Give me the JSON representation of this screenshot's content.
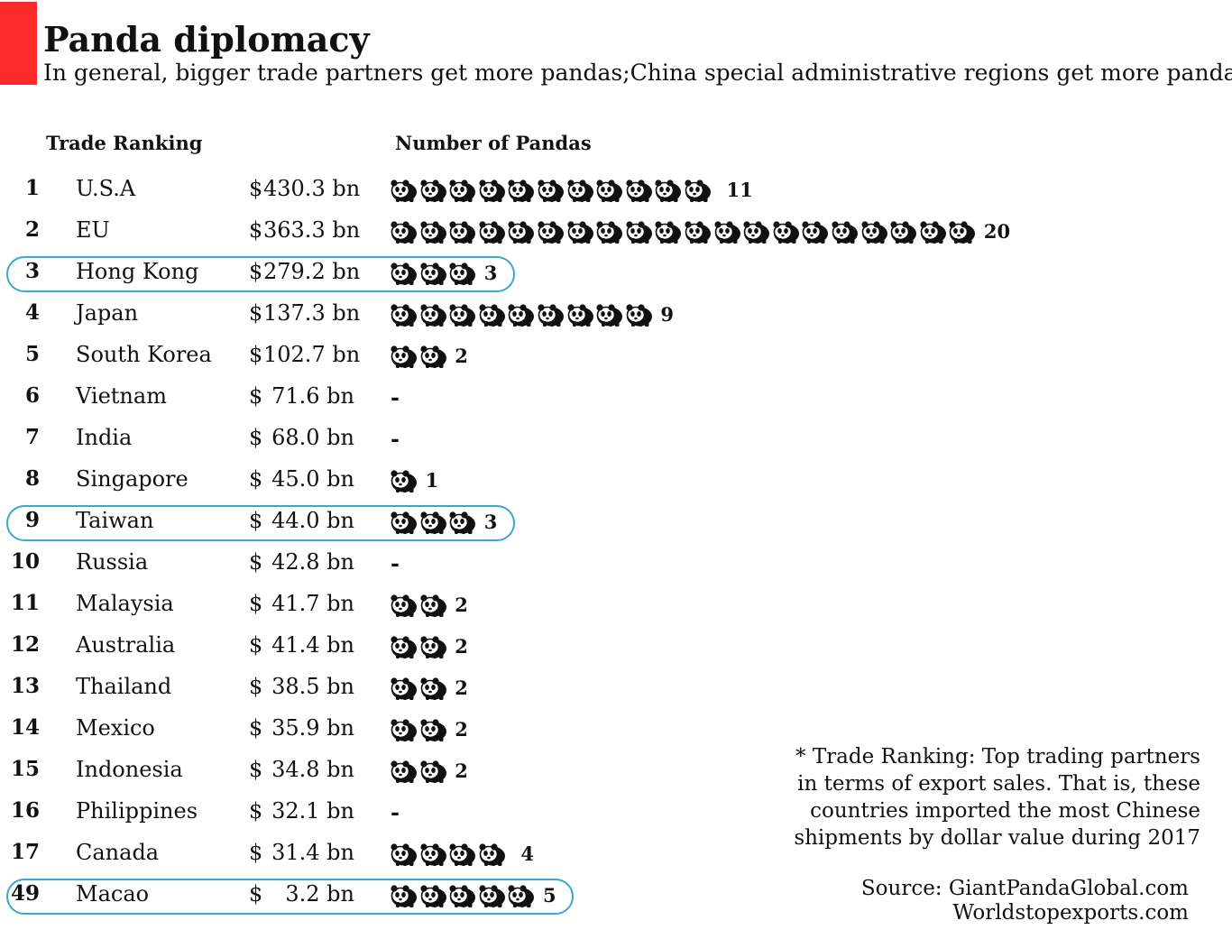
{
  "header": {
    "title": "Panda diplomacy",
    "subtitle": "In general, bigger trade partners get more pandas;China special administrative regions get more pandas"
  },
  "columns": {
    "ranking": "Trade Ranking",
    "pandas": "Number of Pandas"
  },
  "colors": {
    "accent": "#ff2a2a",
    "highlight": "#3aa6d4",
    "text": "#111111"
  },
  "icon": "panda-icon",
  "chart_data": {
    "type": "table",
    "rows": [
      {
        "rank": "1",
        "country": "U.S.A",
        "currency": "$",
        "amount": "430.3 bn",
        "pandas": 11,
        "label": "11",
        "highlight": false
      },
      {
        "rank": "2",
        "country": "EU",
        "currency": "$",
        "amount": "363.3 bn",
        "pandas": 20,
        "label": "20",
        "highlight": false
      },
      {
        "rank": "3",
        "country": "Hong Kong",
        "currency": "$",
        "amount": "279.2 bn",
        "pandas": 3,
        "label": "3",
        "highlight": true
      },
      {
        "rank": "4",
        "country": "Japan",
        "currency": "$",
        "amount": "137.3 bn",
        "pandas": 9,
        "label": "9",
        "highlight": false
      },
      {
        "rank": "5",
        "country": "South Korea",
        "currency": "$",
        "amount": "102.7 bn",
        "pandas": 2,
        "label": "2",
        "highlight": false
      },
      {
        "rank": "6",
        "country": "Vietnam",
        "currency": "$",
        "amount": "71.6 bn",
        "pandas": 0,
        "label": "-",
        "highlight": false
      },
      {
        "rank": "7",
        "country": "India",
        "currency": "$",
        "amount": "68.0 bn",
        "pandas": 0,
        "label": "-",
        "highlight": false
      },
      {
        "rank": "8",
        "country": "Singapore",
        "currency": "$",
        "amount": "45.0 bn",
        "pandas": 1,
        "label": "1",
        "highlight": false
      },
      {
        "rank": "9",
        "country": "Taiwan",
        "currency": "$",
        "amount": "44.0 bn",
        "pandas": 3,
        "label": "3",
        "highlight": true
      },
      {
        "rank": "10",
        "country": "Russia",
        "currency": "$",
        "amount": "42.8 bn",
        "pandas": 0,
        "label": "-",
        "highlight": false
      },
      {
        "rank": "11",
        "country": "Malaysia",
        "currency": "$",
        "amount": "41.7 bn",
        "pandas": 2,
        "label": "2",
        "highlight": false
      },
      {
        "rank": "12",
        "country": "Australia",
        "currency": "$",
        "amount": "41.4 bn",
        "pandas": 2,
        "label": "2",
        "highlight": false
      },
      {
        "rank": "13",
        "country": "Thailand",
        "currency": "$",
        "amount": "38.5 bn",
        "pandas": 2,
        "label": "2",
        "highlight": false
      },
      {
        "rank": "14",
        "country": "Mexico",
        "currency": "$",
        "amount": "35.9 bn",
        "pandas": 2,
        "label": "2",
        "highlight": false
      },
      {
        "rank": "15",
        "country": "Indonesia",
        "currency": "$",
        "amount": "34.8 bn",
        "pandas": 2,
        "label": "2",
        "highlight": false
      },
      {
        "rank": "16",
        "country": "Philippines",
        "currency": "$",
        "amount": "32.1 bn",
        "pandas": 0,
        "label": "-",
        "highlight": false
      },
      {
        "rank": "17",
        "country": "Canada",
        "currency": "$",
        "amount": "31.4 bn",
        "pandas": 4,
        "label": "4",
        "highlight": false
      },
      {
        "rank": "49",
        "country": "Macao",
        "currency": "$",
        "amount": "3.2 bn",
        "pandas": 5,
        "label": "5",
        "highlight": true
      }
    ]
  },
  "footnote": {
    "lines": [
      "* Trade Ranking: Top trading partners",
      "in terms of export sales.  That is, these",
      "countries imported the most Chinese",
      "shipments by dollar value during 2017"
    ]
  },
  "source": {
    "lines": [
      "Source: GiantPandaGlobal.com",
      "Worldstopexports.com"
    ]
  }
}
